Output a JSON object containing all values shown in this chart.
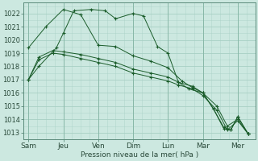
{
  "background_color": "#cce8e0",
  "grid_color": "#a8cfc4",
  "line_color": "#1a5c2a",
  "x_labels": [
    "Sam",
    "Jeu",
    "Ven",
    "Dim",
    "Lun",
    "Mar",
    "Mer"
  ],
  "x_positions": [
    0,
    1,
    2,
    3,
    4,
    5,
    6
  ],
  "xlim": [
    -0.15,
    6.5
  ],
  "ylim": [
    1012.5,
    1022.8
  ],
  "yticks": [
    1013,
    1014,
    1015,
    1016,
    1017,
    1018,
    1019,
    1020,
    1021,
    1022
  ],
  "xlabel": "Pression niveau de la mer( hPa )",
  "series": [
    {
      "x": [
        0.0,
        0.3,
        0.8,
        1.0,
        1.3,
        1.8,
        2.2,
        2.5,
        3.0,
        3.3,
        3.7,
        4.0,
        4.3,
        4.6,
        5.0,
        5.3,
        5.6,
        5.8,
        6.0,
        6.3
      ],
      "y": [
        1017.0,
        1018.0,
        1019.4,
        1020.5,
        1022.2,
        1022.3,
        1022.2,
        1021.6,
        1022.0,
        1021.8,
        1019.5,
        1019.0,
        1016.8,
        1016.3,
        1016.0,
        1014.8,
        1013.3,
        1013.2,
        1014.2,
        1012.9
      ]
    },
    {
      "x": [
        0.0,
        0.3,
        0.7,
        1.0,
        1.5,
        2.0,
        2.5,
        3.0,
        3.5,
        4.0,
        4.3,
        4.7,
        5.0,
        5.4,
        5.7,
        6.0,
        6.3
      ],
      "y": [
        1017.0,
        1018.7,
        1019.2,
        1019.1,
        1018.9,
        1018.6,
        1018.3,
        1017.8,
        1017.5,
        1017.2,
        1016.8,
        1016.5,
        1016.0,
        1015.0,
        1013.5,
        1014.0,
        1012.9
      ]
    },
    {
      "x": [
        0.0,
        0.3,
        0.7,
        1.0,
        1.5,
        2.0,
        2.5,
        3.0,
        3.5,
        4.0,
        4.3,
        4.7,
        5.0,
        5.4,
        5.7,
        6.0,
        6.3
      ],
      "y": [
        1017.0,
        1018.5,
        1019.0,
        1018.9,
        1018.6,
        1018.3,
        1018.0,
        1017.5,
        1017.2,
        1016.9,
        1016.6,
        1016.3,
        1015.8,
        1014.7,
        1013.2,
        1013.9,
        1012.9
      ]
    },
    {
      "x": [
        0.0,
        0.5,
        1.0,
        1.5,
        2.0,
        2.5,
        3.0,
        3.5,
        4.0,
        4.4,
        4.7,
        5.0,
        5.3,
        5.6,
        5.8,
        6.0,
        6.3
      ],
      "y": [
        1019.4,
        1021.0,
        1022.3,
        1021.9,
        1019.6,
        1019.5,
        1018.8,
        1018.4,
        1017.9,
        1016.9,
        1016.4,
        1016.0,
        1014.8,
        1013.4,
        1013.2,
        1014.2,
        1012.9
      ]
    }
  ]
}
